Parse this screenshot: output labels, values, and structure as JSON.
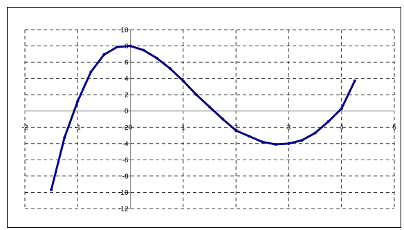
{
  "chart_data": {
    "type": "line",
    "title": "",
    "xlabel": "",
    "ylabel": "",
    "xlim": [
      -2,
      5
    ],
    "ylim": [
      -12,
      10
    ],
    "x_ticks": [
      -2,
      -1,
      0,
      1,
      2,
      3,
      4,
      5
    ],
    "y_ticks": [
      10,
      8,
      6,
      4,
      2,
      0,
      -2,
      -4,
      -6,
      -8,
      -10,
      -12
    ],
    "x_tick_labels": [
      "-2",
      "-1",
      "0",
      "1",
      "2",
      "3",
      "4",
      "5"
    ],
    "y_tick_labels": [
      "10",
      "8",
      "6",
      "4",
      "2",
      "0",
      "-2",
      "-4",
      "-6",
      "-8",
      "-10",
      "-12"
    ],
    "grid": true,
    "grid_style": "dashed",
    "line_color": "#000080",
    "axis_color": "#808080",
    "grid_color": "#000000",
    "series": [
      {
        "x": [
          -1.5,
          -1.25,
          -1.0,
          -0.75,
          -0.5,
          -0.25,
          0.0,
          0.25,
          0.5,
          0.75,
          1.0,
          1.25,
          1.5,
          1.75,
          2.0,
          2.25,
          2.5,
          2.75,
          3.0,
          3.25,
          3.5,
          3.75,
          4.0,
          4.25
        ],
        "values": [
          -9.69,
          -3.27,
          1.2,
          4.8,
          6.94,
          7.88,
          8.0,
          7.48,
          6.5,
          5.23,
          3.7,
          2.0,
          0.5,
          -1.0,
          -2.4,
          -3.1,
          -3.8,
          -4.1,
          -4.0,
          -3.6,
          -2.7,
          -1.3,
          0.3,
          3.7
        ]
      }
    ]
  }
}
